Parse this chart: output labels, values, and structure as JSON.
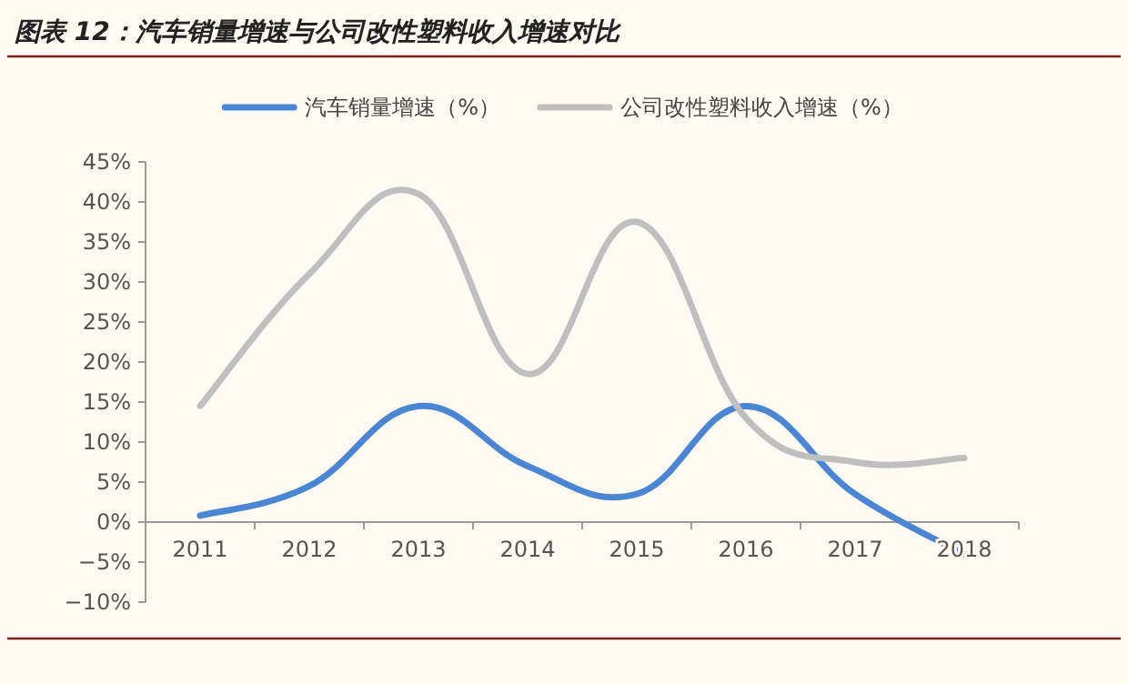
{
  "chart_data": {
    "type": "line",
    "title": "图表 12：汽车销量增速与公司改性塑料收入增速对比",
    "categories": [
      "2011",
      "2012",
      "2013",
      "2014",
      "2015",
      "2016",
      "2017",
      "2018"
    ],
    "series": [
      {
        "name": "汽车销量增速（%）",
        "color": "#4a86d4",
        "values": [
          0.8,
          4.5,
          14.5,
          7,
          3.5,
          14.5,
          3.5,
          -4
        ]
      },
      {
        "name": "公司改性塑料收入增速（%）",
        "color": "#bfbfbf",
        "values": [
          14.5,
          31,
          41,
          18.5,
          37.5,
          13,
          7.5,
          8
        ]
      }
    ],
    "ylim": [
      -10,
      45
    ],
    "yticks": [
      {
        "value": -10,
        "label": "−10%"
      },
      {
        "value": -5,
        "label": "−5%"
      },
      {
        "value": 0,
        "label": "0%"
      },
      {
        "value": 5,
        "label": "5%"
      },
      {
        "value": 10,
        "label": "10%"
      },
      {
        "value": 15,
        "label": "15%"
      },
      {
        "value": 20,
        "label": "20%"
      },
      {
        "value": 25,
        "label": "25%"
      },
      {
        "value": 30,
        "label": "30%"
      },
      {
        "value": 35,
        "label": "35%"
      },
      {
        "value": 40,
        "label": "40%"
      },
      {
        "value": 45,
        "label": "45%"
      }
    ],
    "legend": "top"
  }
}
